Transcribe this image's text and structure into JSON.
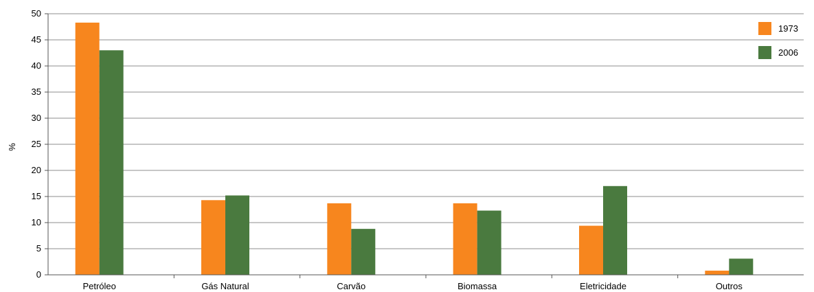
{
  "chart_data": {
    "type": "bar",
    "title": "",
    "xlabel": "",
    "ylabel": "%",
    "ylim": [
      0,
      50
    ],
    "yticks": [
      0,
      5,
      10,
      15,
      20,
      25,
      30,
      35,
      40,
      45,
      50
    ],
    "grid": true,
    "legend_position": "top-right",
    "categories": [
      "Petróleo",
      "Gás Natural",
      "Carvão",
      "Biomassa",
      "Eletricidade",
      "Outros"
    ],
    "series": [
      {
        "name": "1973",
        "color": "#f7861e",
        "values": [
          48.3,
          14.3,
          13.7,
          13.7,
          9.4,
          0.8
        ]
      },
      {
        "name": "2006",
        "color": "#4a7a3f",
        "values": [
          43.0,
          15.2,
          8.8,
          12.3,
          17.0,
          3.1
        ]
      }
    ]
  }
}
